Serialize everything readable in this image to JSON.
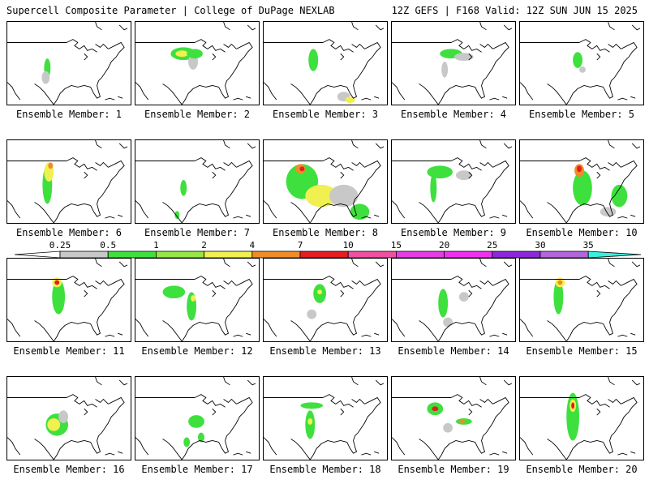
{
  "header": {
    "title_left": "Supercell Composite Parameter | College of DuPage NEXLAB",
    "title_right": "12Z GEFS | F168 Valid: 12Z SUN JUN 15 2025"
  },
  "colorbar": {
    "ticks": [
      "0.25",
      "0.5",
      "1",
      "2",
      "4",
      "7",
      "10",
      "15",
      "20",
      "25",
      "30",
      "35"
    ],
    "colors": [
      "#c8c8c8",
      "#3ee03e",
      "#96e646",
      "#f0f050",
      "#f08c28",
      "#e61e1e",
      "#f050a0",
      "#e63ce6",
      "#f030f0",
      "#8c28dc",
      "#b464dc",
      "#3ceedc"
    ]
  },
  "panels": [
    {
      "label": "Ensemble Member: 1"
    },
    {
      "label": "Ensemble Member: 2"
    },
    {
      "label": "Ensemble Member: 3"
    },
    {
      "label": "Ensemble Member: 4"
    },
    {
      "label": "Ensemble Member: 5"
    },
    {
      "label": "Ensemble Member: 6"
    },
    {
      "label": "Ensemble Member: 7"
    },
    {
      "label": "Ensemble Member: 8"
    },
    {
      "label": "Ensemble Member: 9"
    },
    {
      "label": "Ensemble Member: 10"
    },
    {
      "label": "Ensemble Member: 11"
    },
    {
      "label": "Ensemble Member: 12"
    },
    {
      "label": "Ensemble Member: 13"
    },
    {
      "label": "Ensemble Member: 14"
    },
    {
      "label": "Ensemble Member: 15"
    },
    {
      "label": "Ensemble Member: 16"
    },
    {
      "label": "Ensemble Member: 17"
    },
    {
      "label": "Ensemble Member: 18"
    },
    {
      "label": "Ensemble Member: 19"
    },
    {
      "label": "Ensemble Member: 20"
    }
  ]
}
